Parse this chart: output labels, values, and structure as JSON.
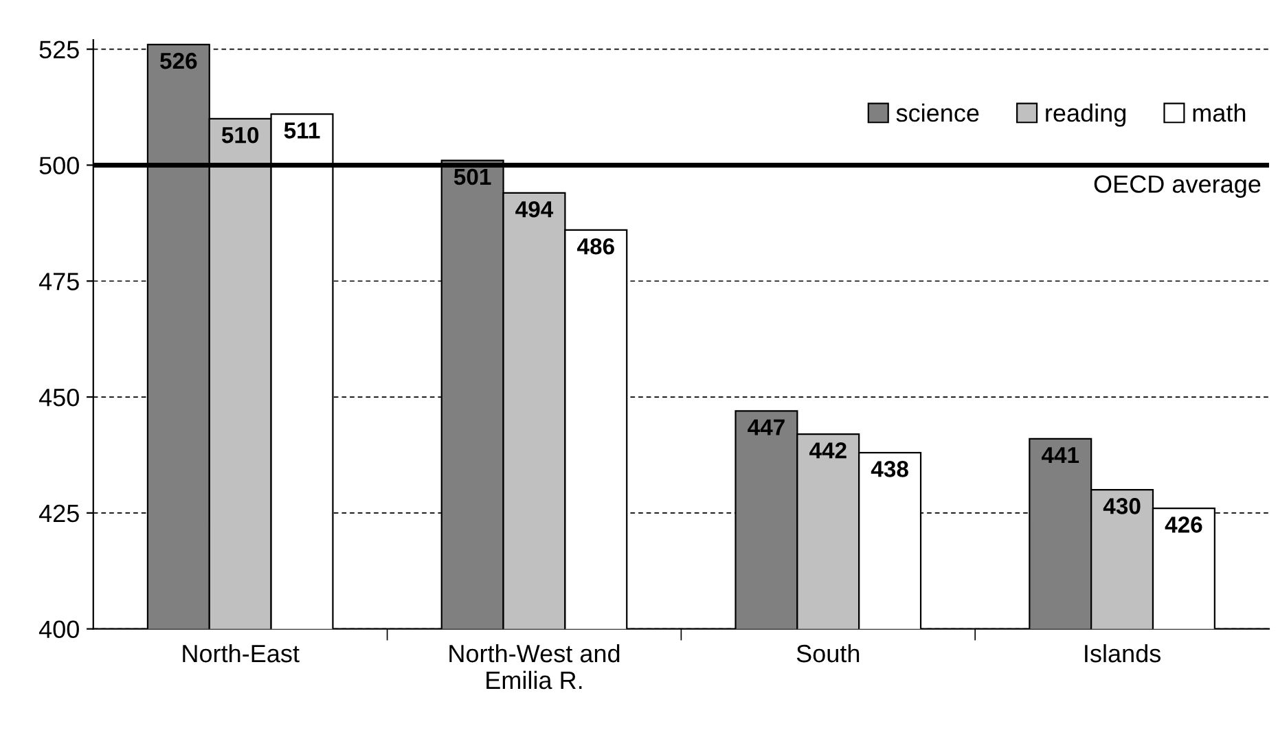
{
  "chart_data": {
    "type": "bar",
    "categories": [
      "North-East",
      "North-West and\nEmilia R.",
      "South",
      "Islands"
    ],
    "series": [
      {
        "name": "science",
        "color": "#808080",
        "values": [
          526,
          501,
          447,
          441
        ]
      },
      {
        "name": "reading",
        "color": "#c0c0c0",
        "values": [
          510,
          494,
          442,
          430
        ]
      },
      {
        "name": "math",
        "color": "#ffffff",
        "values": [
          511,
          486,
          438,
          426
        ]
      }
    ],
    "ylim": [
      400,
      527
    ],
    "yticks": [
      400,
      425,
      450,
      475,
      500,
      525
    ],
    "grid": "y",
    "legend": "top right",
    "data_labels": true,
    "ref_lines": [
      {
        "axis": "y",
        "value": 500,
        "label": "OECD average",
        "color": "#000000",
        "line_style": "solid"
      }
    ]
  }
}
